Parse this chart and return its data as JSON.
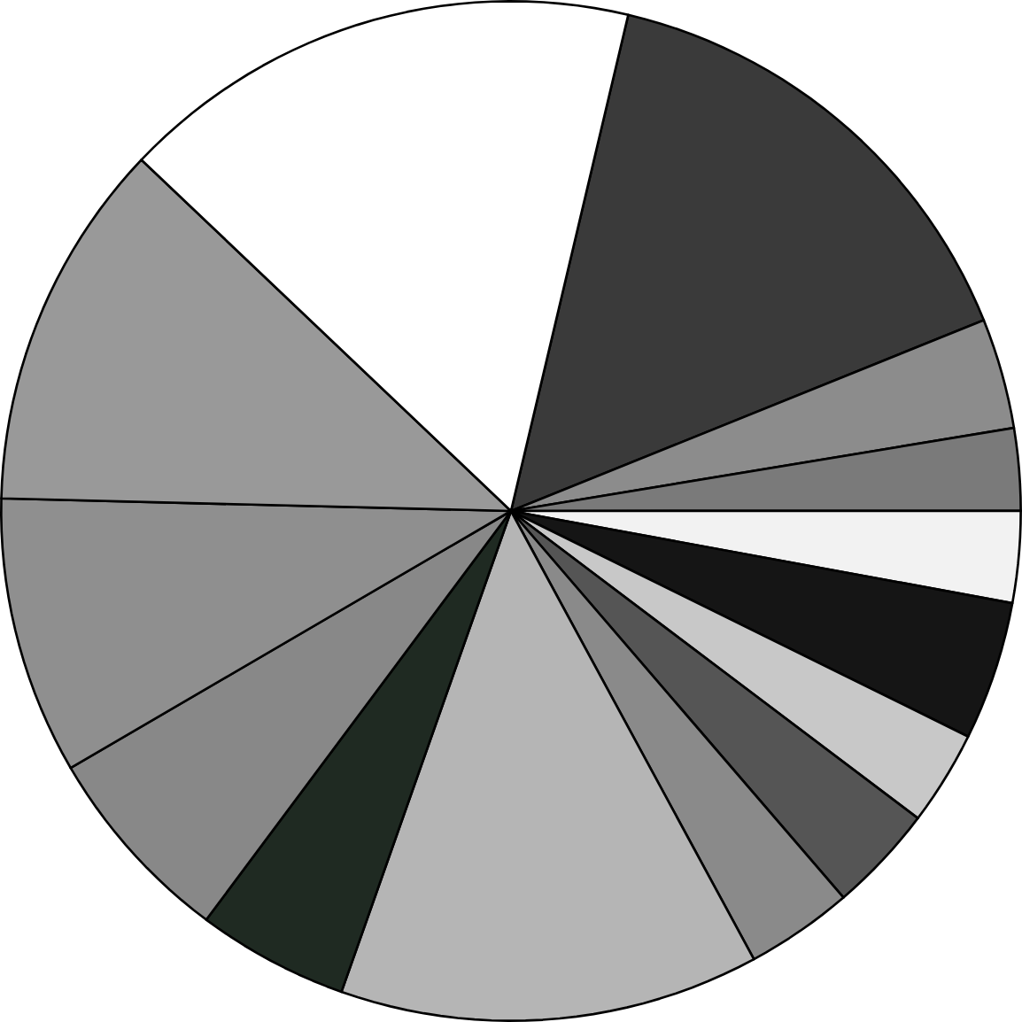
{
  "chart_data": {
    "type": "pie",
    "categories": [
      null,
      null,
      null,
      null,
      null,
      null,
      null,
      null,
      null,
      null,
      null,
      null,
      null,
      null
    ],
    "values": [
      15.2,
      3.5,
      2.6,
      2.9,
      4.4,
      3.0,
      3.4,
      3.4,
      13.3,
      4.8,
      6.4,
      8.8,
      11.7,
      16.6
    ],
    "colors": [
      "#3a3a3a",
      "#8c8c8c",
      "#7a7a7a",
      "#f2f2f2",
      "#151515",
      "#c8c8c8",
      "#555555",
      "#8a8a8a",
      "#b5b5b5",
      "#1f2a22",
      "#888888",
      "#8f8f8f",
      "#999999",
      "#ffffff"
    ]
  }
}
